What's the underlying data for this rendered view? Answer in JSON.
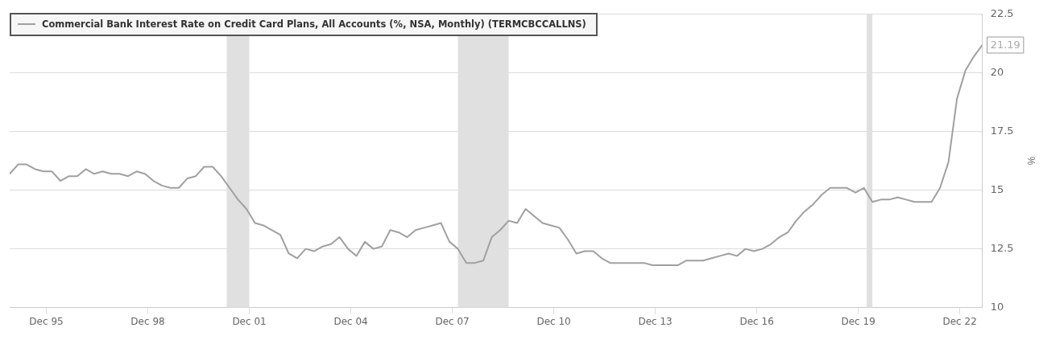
{
  "chart_data": {
    "type": "line",
    "xlabel": null,
    "ylabel": "%",
    "x": [
      "1994-11",
      "1995-02",
      "1995-05",
      "1995-08",
      "1995-11",
      "1996-02",
      "1996-05",
      "1996-08",
      "1996-11",
      "1997-02",
      "1997-05",
      "1997-08",
      "1997-11",
      "1998-02",
      "1998-05",
      "1998-08",
      "1998-11",
      "1999-02",
      "1999-05",
      "1999-08",
      "1999-11",
      "2000-02",
      "2000-05",
      "2000-08",
      "2000-11",
      "2001-02",
      "2001-05",
      "2001-08",
      "2001-11",
      "2002-02",
      "2002-05",
      "2002-08",
      "2002-11",
      "2003-02",
      "2003-05",
      "2003-08",
      "2003-11",
      "2004-02",
      "2004-05",
      "2004-08",
      "2004-11",
      "2005-02",
      "2005-05",
      "2005-08",
      "2005-11",
      "2006-02",
      "2006-05",
      "2006-08",
      "2006-11",
      "2007-02",
      "2007-05",
      "2007-08",
      "2007-11",
      "2008-02",
      "2008-05",
      "2008-08",
      "2008-11",
      "2009-02",
      "2009-05",
      "2009-08",
      "2009-11",
      "2010-02",
      "2010-05",
      "2010-08",
      "2010-11",
      "2011-02",
      "2011-05",
      "2011-08",
      "2011-11",
      "2012-02",
      "2012-05",
      "2012-08",
      "2012-11",
      "2013-02",
      "2013-05",
      "2013-08",
      "2013-11",
      "2014-02",
      "2014-05",
      "2014-08",
      "2014-11",
      "2015-02",
      "2015-05",
      "2015-08",
      "2015-11",
      "2016-02",
      "2016-05",
      "2016-08",
      "2016-11",
      "2017-02",
      "2017-05",
      "2017-08",
      "2017-11",
      "2018-02",
      "2018-05",
      "2018-08",
      "2018-11",
      "2019-02",
      "2019-05",
      "2019-08",
      "2019-11",
      "2020-02",
      "2020-05",
      "2020-08",
      "2020-11",
      "2021-02",
      "2021-05",
      "2021-08",
      "2021-11",
      "2022-02",
      "2022-05",
      "2022-08",
      "2022-11",
      "2023-02",
      "2023-05",
      "2023-08"
    ],
    "series": [
      {
        "name": "Commercial Bank Interest Rate on Credit Card Plans, All Accounts (%, NSA, Monthly) (TERMCBCCALLNS)",
        "color": "#a0a0a0",
        "values": [
          15.7,
          16.1,
          16.1,
          15.9,
          15.8,
          15.8,
          15.4,
          15.6,
          15.6,
          15.9,
          15.7,
          15.8,
          15.7,
          15.7,
          15.6,
          15.8,
          15.7,
          15.4,
          15.2,
          15.1,
          15.1,
          15.5,
          15.6,
          16.0,
          16.0,
          15.6,
          15.1,
          14.6,
          14.2,
          13.6,
          13.5,
          13.3,
          13.1,
          12.3,
          12.1,
          12.5,
          12.4,
          12.6,
          12.7,
          13.0,
          12.5,
          12.2,
          12.8,
          12.5,
          12.6,
          13.3,
          13.2,
          13.0,
          13.3,
          13.4,
          13.5,
          13.6,
          12.8,
          12.5,
          11.9,
          11.9,
          12.0,
          13.0,
          13.3,
          13.7,
          13.6,
          14.2,
          13.9,
          13.6,
          13.5,
          13.4,
          12.9,
          12.3,
          12.4,
          12.4,
          12.1,
          11.9,
          11.9,
          11.9,
          11.9,
          11.9,
          11.8,
          11.8,
          11.8,
          11.8,
          12.0,
          12.0,
          12.0,
          12.1,
          12.2,
          12.3,
          12.2,
          12.5,
          12.4,
          12.5,
          12.7,
          13.0,
          13.2,
          13.7,
          14.1,
          14.4,
          14.8,
          15.1,
          15.1,
          15.1,
          14.9,
          15.1,
          14.5,
          14.6,
          14.6,
          14.7,
          14.6,
          14.5,
          14.5,
          14.5,
          15.1,
          16.2,
          18.9,
          20.1,
          20.7,
          21.19
        ]
      }
    ],
    "xlim": [
      "1994-11",
      "2023-08"
    ],
    "xticks": [
      {
        "value": "1995-12",
        "label": "Dec 95"
      },
      {
        "value": "1998-12",
        "label": "Dec 98"
      },
      {
        "value": "2001-12",
        "label": "Dec 01"
      },
      {
        "value": "2004-12",
        "label": "Dec 04"
      },
      {
        "value": "2007-12",
        "label": "Dec 07"
      },
      {
        "value": "2010-12",
        "label": "Dec 10"
      },
      {
        "value": "2013-12",
        "label": "Dec 13"
      },
      {
        "value": "2016-12",
        "label": "Dec 16"
      },
      {
        "value": "2019-12",
        "label": "Dec 19"
      },
      {
        "value": "2022-12",
        "label": "Dec 22"
      }
    ],
    "ylim": [
      10,
      22.5
    ],
    "yticks": [
      10,
      12.5,
      15,
      17.5,
      20,
      22.5
    ],
    "bands": [
      {
        "axis": "x",
        "from": "2001-04",
        "to": "2001-12",
        "color": "#e0e0e0"
      },
      {
        "axis": "x",
        "from": "2008-02",
        "to": "2009-08",
        "color": "#e0e0e0"
      },
      {
        "axis": "x",
        "from": "2020-03",
        "to": "2020-05",
        "color": "#e0e0e0"
      }
    ],
    "annotations": [
      {
        "text": "21.19",
        "x": "2023-08",
        "y": 21.19
      }
    ],
    "grid": "y",
    "legend": "top left",
    "marker": "none",
    "line_style": "solid"
  }
}
